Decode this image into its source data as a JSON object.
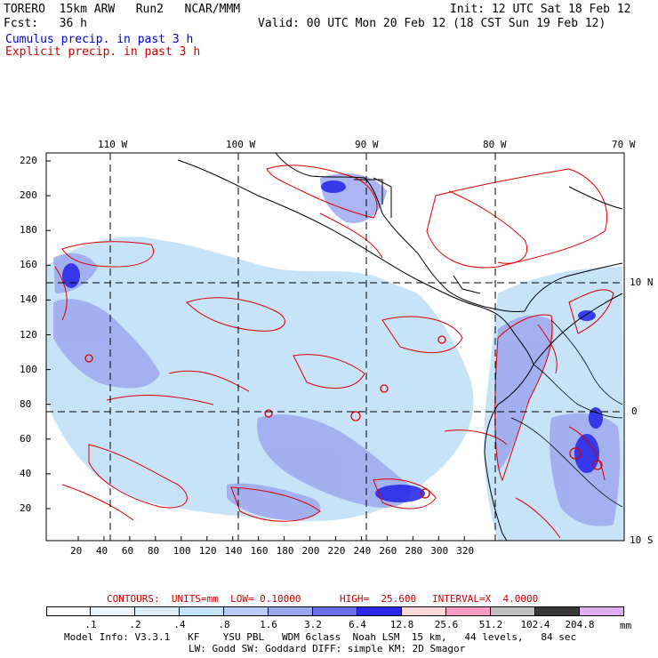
{
  "header": {
    "model_name": "TORERO  15km ARW   Run2   NCAR/MMM",
    "init": "Init: 12 UTC Sat 18 Feb 12",
    "fcst": "Fcst:   36 h",
    "valid": "Valid: 00 UTC Mon 20 Feb 12 (18 CST Sun 19 Feb 12)",
    "cumulus": "Cumulus precip. in past 3 h",
    "explicit": "Explicit precip. in past 3 h"
  },
  "map": {
    "lon_labels": [
      "110 W",
      "100 W",
      "90 W",
      "80 W",
      "70 W"
    ],
    "lat_labels": [
      "10 N",
      "0",
      "10 S"
    ],
    "y_ticks": [
      "220",
      "200",
      "180",
      "160",
      "140",
      "120",
      "100",
      "80",
      "60",
      "40",
      "20"
    ],
    "x_ticks": [
      "20",
      "40",
      "60",
      "80",
      "100",
      "120",
      "140",
      "160",
      "180",
      "200",
      "220",
      "240",
      "260",
      "280",
      "300",
      "320"
    ],
    "colors": {
      "coast": "#000000",
      "grid": "#000000",
      "contour": "#dd0000"
    }
  },
  "contour_info": {
    "contours": "CONTOURS:  UNITS=mm  LOW= 0.10000",
    "high": "HIGH=  25.600",
    "interval": "INTERVAL=X  4.0000"
  },
  "colorbar": {
    "labels": [
      ".1",
      ".2",
      ".4",
      ".8",
      "1.6",
      "3.2",
      "6.4",
      "12.8",
      "25.6",
      "51.2",
      "102.4",
      "204.8"
    ],
    "colors": [
      "#ffffff",
      "#ecf4fc",
      "#d8ecfa",
      "#c4e2f8",
      "#b8ccf6",
      "#9ca8ee",
      "#6a70ea",
      "#2a2ae8",
      "#fcd8d8",
      "#f89cc4",
      "#c0c0c0",
      "#383838",
      "#dcb0f0"
    ],
    "unit": "mm"
  },
  "footer": {
    "line1": "Model Info: V3.3.1   KF    YSU PBL   WDM 6class  Noah LSM  15 km,   44 levels,   84 sec",
    "line2": "LW: Godd SW: Goddard DIFF: simple KM: 2D Smagor"
  }
}
